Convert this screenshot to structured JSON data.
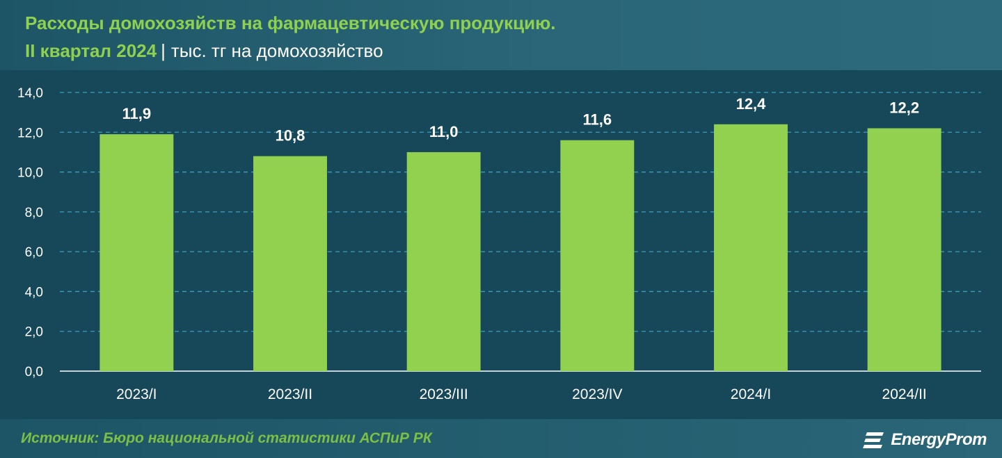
{
  "header": {
    "title": "Расходы домохозяйств на фармацевтическую продукцию.",
    "period": "II квартал 2024",
    "separator": "|",
    "unit": "тыс. тг на домохозяйство"
  },
  "footer": {
    "source": "Источник: Бюро национальной статистики АСПиР РК",
    "logo_text": "EnergyProm"
  },
  "colors": {
    "bar": "#92d050",
    "title_accent": "#8fd14f",
    "background": "#17485a",
    "gridline": "#3fa9c9"
  },
  "chart_data": {
    "type": "bar",
    "categories": [
      "2023/I",
      "2023/II",
      "2023/III",
      "2023/IV",
      "2024/I",
      "2024/II"
    ],
    "values": [
      11.9,
      10.8,
      11.0,
      11.6,
      12.4,
      12.2
    ],
    "value_labels": [
      "11,9",
      "10,8",
      "11,0",
      "11,6",
      "12,4",
      "12,2"
    ],
    "ylim": [
      0,
      14
    ],
    "yticks": [
      0,
      2,
      4,
      6,
      8,
      10,
      12,
      14
    ],
    "ytick_labels": [
      "0,0",
      "2,0",
      "4,0",
      "6,0",
      "8,0",
      "10,0",
      "12,0",
      "14,0"
    ],
    "grid": true,
    "legend": "none"
  }
}
